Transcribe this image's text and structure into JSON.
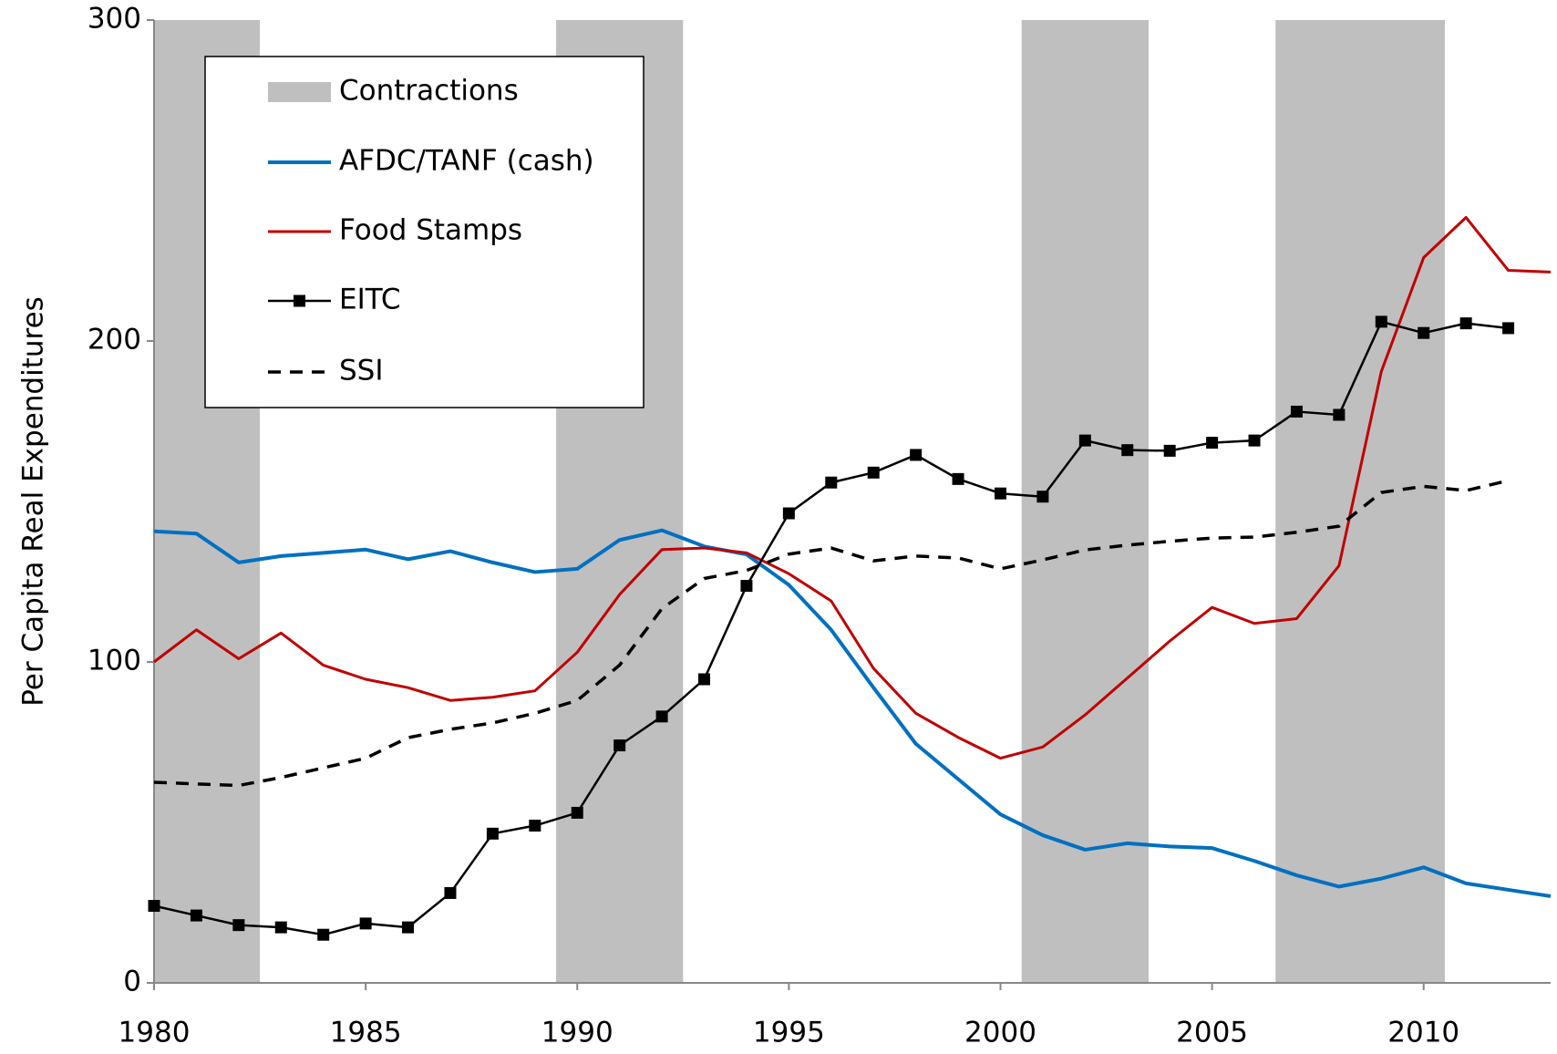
{
  "chart_data": {
    "type": "line",
    "y_label": "Per Capita Real Expenditures",
    "x": [
      1980,
      1981,
      1982,
      1983,
      1984,
      1985,
      1986,
      1987,
      1988,
      1989,
      1990,
      1991,
      1992,
      1993,
      1994,
      1995,
      1996,
      1997,
      1998,
      1999,
      2000,
      2001,
      2002,
      2003,
      2004,
      2005,
      2006,
      2007,
      2008,
      2009,
      2010,
      2011,
      2012,
      2013
    ],
    "xlim": [
      1980,
      2013
    ],
    "xticks": [
      1980,
      1985,
      1990,
      1995,
      2000,
      2005,
      2010
    ],
    "ylim": [
      0,
      300
    ],
    "yticks": [
      0,
      100,
      200,
      300
    ],
    "grid": false,
    "shading": {
      "name": "Contractions",
      "color": "#bfbfbf",
      "ranges": [
        [
          1980,
          1982.5
        ],
        [
          1989.5,
          1992.5
        ],
        [
          2000.5,
          2003.5
        ],
        [
          2006.5,
          2010.5
        ]
      ]
    },
    "series": [
      {
        "name": "AFDC/TANF (cash)",
        "color": "#0070c0",
        "width": 4,
        "dash": false,
        "marker": null,
        "values": [
          140.7,
          140,
          131,
          133,
          134,
          135,
          132,
          134.5,
          131,
          128,
          129,
          138,
          141,
          136,
          133.5,
          124,
          110,
          92,
          74.5,
          63.5,
          52.5,
          46,
          41.5,
          43.5,
          42.5,
          42,
          38,
          33.5,
          30,
          32.5,
          36,
          31,
          29,
          27
        ]
      },
      {
        "name": "Food Stamps",
        "color": "#c00000",
        "width": 3,
        "dash": false,
        "marker": null,
        "values": [
          100,
          110,
          101,
          109,
          99,
          94.6,
          92,
          88,
          89,
          91,
          103,
          121,
          135,
          135.5,
          134,
          127.5,
          119,
          98,
          84,
          76.5,
          70,
          73.5,
          83.5,
          95,
          106.5,
          117,
          112,
          113.5,
          130,
          190.5,
          226,
          238.5,
          222,
          221.5
        ]
      },
      {
        "name": "EITC",
        "color": "#000000",
        "width": 2.5,
        "dash": false,
        "marker": "square",
        "values": [
          24,
          21,
          18,
          17.3,
          15,
          18.5,
          17.3,
          28,
          46.5,
          49,
          53,
          74,
          83,
          94.6,
          123.7,
          146.3,
          155.9,
          159,
          164.5,
          157,
          152.5,
          151.5,
          169,
          166,
          165.8,
          168.3,
          169,
          178,
          177,
          206,
          202.5,
          205.5,
          204,
          null
        ]
      },
      {
        "name": "SSI",
        "color": "#000000",
        "width": 3.5,
        "dash": true,
        "marker": null,
        "values": [
          62.5,
          62,
          61.5,
          64,
          67,
          70,
          76.4,
          79,
          81,
          84,
          88,
          99,
          116.6,
          126,
          128.5,
          133.6,
          135.5,
          131.5,
          133,
          132.4,
          129,
          131.8,
          134.9,
          136.4,
          137.6,
          138.6,
          138.9,
          140.4,
          142.3,
          152.8,
          154.7,
          153.4,
          156.5,
          null
        ]
      }
    ]
  }
}
